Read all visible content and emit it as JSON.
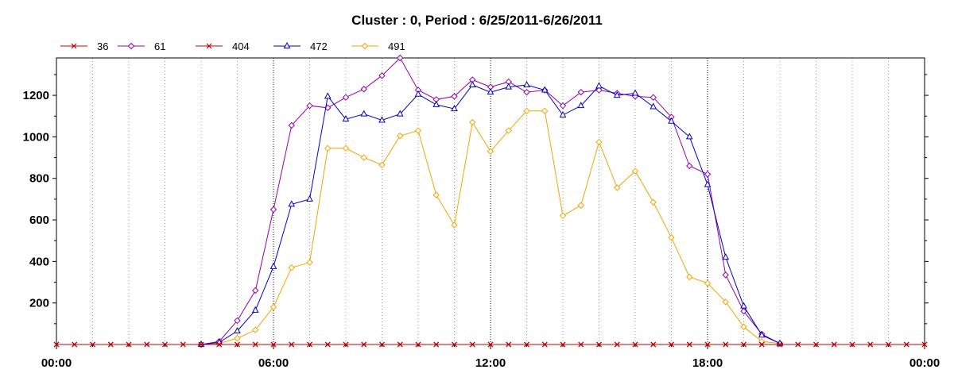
{
  "chart_data": {
    "type": "line",
    "title": "Cluster : 0, Period : 6/25/2011-6/26/2011",
    "xlabel": "",
    "ylabel": "",
    "x_range_hours": [
      0,
      24
    ],
    "x_ticks": [
      {
        "hour": 0,
        "label": "00:00"
      },
      {
        "hour": 6,
        "label": "06:00"
      },
      {
        "hour": 12,
        "label": "12:00"
      },
      {
        "hour": 18,
        "label": "18:00"
      },
      {
        "hour": 24,
        "label": "00:00"
      }
    ],
    "ylim": [
      0,
      1380
    ],
    "y_ticks": [
      200,
      400,
      600,
      800,
      1000,
      1200
    ],
    "grid": "vertical dotted lines every 30 minutes",
    "legend_position": "top-left",
    "x_hours": [
      0,
      0.5,
      1,
      1.5,
      2,
      2.5,
      3,
      3.5,
      4,
      4.5,
      5,
      5.5,
      6,
      6.5,
      7,
      7.5,
      8,
      8.5,
      9,
      9.5,
      10,
      10.5,
      11,
      11.5,
      12,
      12.5,
      13,
      13.5,
      14,
      14.5,
      15,
      15.5,
      16,
      16.5,
      17,
      17.5,
      18,
      18.5,
      19,
      19.5,
      20,
      20.5,
      21,
      21.5,
      22,
      22.5,
      23,
      23.5,
      24
    ],
    "series": [
      {
        "name": "36",
        "color": "#c00000",
        "marker": "x",
        "values": [
          0,
          0,
          0,
          0,
          0,
          0,
          0,
          0,
          0,
          0,
          0,
          0,
          0,
          0,
          0,
          0,
          0,
          0,
          0,
          0,
          0,
          0,
          0,
          0,
          0,
          0,
          0,
          0,
          0,
          0,
          0,
          0,
          0,
          0,
          0,
          0,
          0,
          0,
          0,
          0,
          0,
          0,
          0,
          0,
          0,
          0,
          0,
          0,
          0
        ]
      },
      {
        "name": "61",
        "color": "#9400a8",
        "marker": "diamond",
        "values": [
          null,
          null,
          null,
          null,
          null,
          null,
          null,
          null,
          0,
          15,
          115,
          260,
          650,
          1055,
          1150,
          1140,
          1190,
          1230,
          1295,
          1380,
          1225,
          1180,
          1195,
          1275,
          1240,
          1265,
          1215,
          1225,
          1150,
          1215,
          1225,
          1210,
          1195,
          1190,
          1095,
          860,
          820,
          335,
          160,
          50,
          5,
          null,
          null,
          null,
          null,
          null,
          null,
          null,
          null
        ]
      },
      {
        "name": "404",
        "color": "#c00000",
        "marker": "x",
        "values": [
          0,
          0,
          0,
          0,
          0,
          0,
          0,
          0,
          0,
          0,
          0,
          0,
          0,
          0,
          0,
          0,
          0,
          0,
          0,
          0,
          0,
          0,
          0,
          0,
          0,
          0,
          0,
          0,
          0,
          0,
          0,
          0,
          0,
          0,
          0,
          0,
          0,
          0,
          0,
          0,
          0,
          0,
          0,
          0,
          0,
          0,
          0,
          0,
          0
        ]
      },
      {
        "name": "472",
        "color": "#0000c8",
        "marker": "triangle",
        "values": [
          null,
          null,
          null,
          null,
          null,
          null,
          null,
          null,
          0,
          10,
          65,
          165,
          375,
          675,
          700,
          1195,
          1085,
          1110,
          1080,
          1110,
          1205,
          1155,
          1135,
          1250,
          1215,
          1240,
          1250,
          1225,
          1105,
          1150,
          1245,
          1200,
          1210,
          1145,
          1075,
          1000,
          770,
          420,
          185,
          45,
          5,
          null,
          null,
          null,
          null,
          null,
          null,
          null,
          null
        ]
      },
      {
        "name": "491",
        "color": "#f0a500",
        "marker": "diamond",
        "values": [
          null,
          null,
          null,
          null,
          null,
          null,
          null,
          null,
          0,
          5,
          30,
          70,
          180,
          370,
          395,
          945,
          945,
          900,
          865,
          1005,
          1030,
          720,
          575,
          1070,
          930,
          1030,
          1125,
          1125,
          620,
          670,
          975,
          755,
          835,
          685,
          515,
          325,
          295,
          205,
          85,
          15,
          5,
          null,
          null,
          null,
          null,
          null,
          null,
          null,
          null
        ]
      }
    ]
  }
}
